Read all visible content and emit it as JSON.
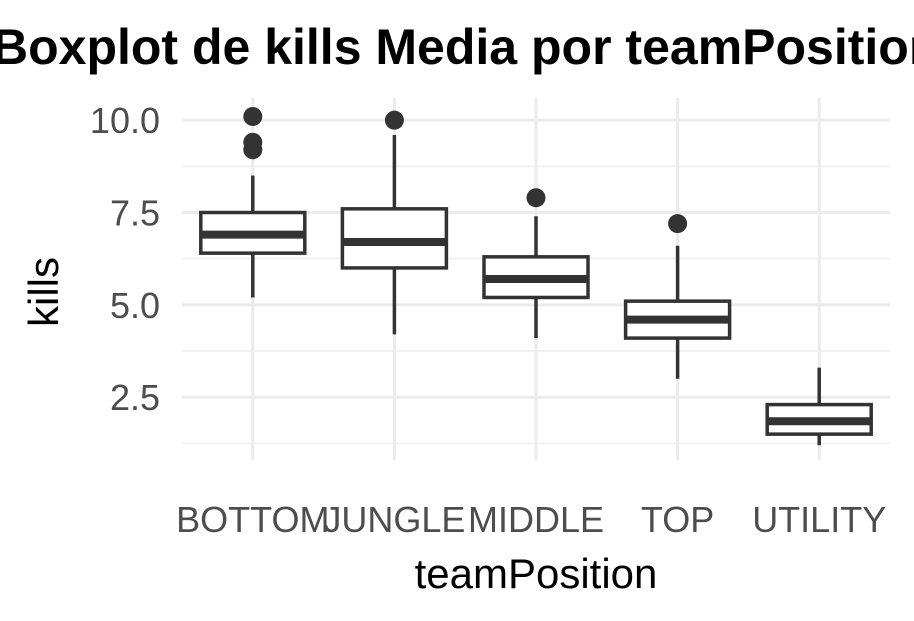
{
  "chart_data": {
    "type": "boxplot",
    "title": "Boxplot de kills Media por teamPosition",
    "xlabel": "teamPosition",
    "ylabel": "kills",
    "ylim": [
      0.8,
      10.6
    ],
    "yticks": [
      2.5,
      5.0,
      7.5,
      10.0
    ],
    "ytick_labels": [
      "2.5",
      "5.0",
      "7.5",
      "10.0"
    ],
    "categories": [
      "BOTTOM",
      "JUNGLE",
      "MIDDLE",
      "TOP",
      "UTILITY"
    ],
    "grid": true,
    "legend": "none",
    "colors": {
      "box_stroke": "#333333",
      "grid": "#ebebeb",
      "tick_text": "#4d4d4d"
    },
    "boxes": [
      {
        "category": "BOTTOM",
        "whisker_low": 5.2,
        "q1": 6.4,
        "median": 6.9,
        "q3": 7.5,
        "whisker_high": 8.5,
        "outliers": [
          9.2,
          9.4,
          10.1
        ]
      },
      {
        "category": "JUNGLE",
        "whisker_low": 4.2,
        "q1": 6.0,
        "median": 6.7,
        "q3": 7.6,
        "whisker_high": 9.6,
        "outliers": [
          10.0
        ]
      },
      {
        "category": "MIDDLE",
        "whisker_low": 4.1,
        "q1": 5.2,
        "median": 5.7,
        "q3": 6.3,
        "whisker_high": 7.4,
        "outliers": [
          7.9
        ]
      },
      {
        "category": "TOP",
        "whisker_low": 3.0,
        "q1": 4.1,
        "median": 4.6,
        "q3": 5.1,
        "whisker_high": 6.6,
        "outliers": [
          7.2
        ]
      },
      {
        "category": "UTILITY",
        "whisker_low": 1.2,
        "q1": 1.5,
        "median": 1.85,
        "q3": 2.3,
        "whisker_high": 3.3,
        "outliers": []
      }
    ]
  }
}
